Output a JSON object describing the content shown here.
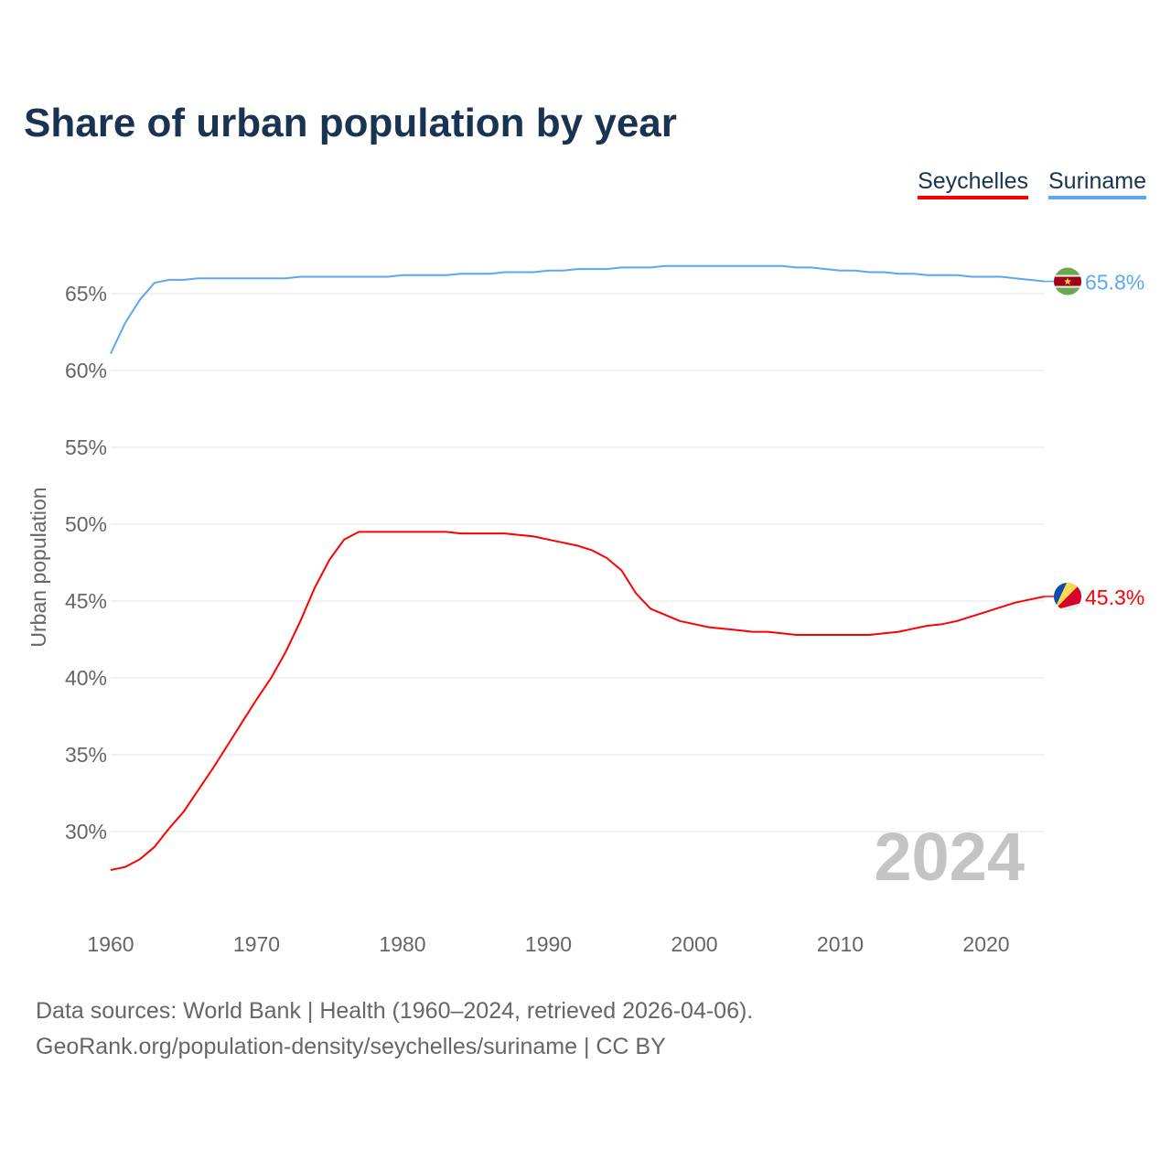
{
  "chart_data": {
    "type": "line",
    "title": "Share of urban population by year",
    "xlabel": "",
    "ylabel": "Urban population",
    "xlim": [
      1960,
      2024
    ],
    "ylim": [
      25,
      68.5
    ],
    "grid": true,
    "legend_placement": "top-right",
    "x_ticks": [
      "1960",
      "1970",
      "1980",
      "1990",
      "2000",
      "2010",
      "2020"
    ],
    "y_ticks": [
      30,
      35,
      40,
      45,
      50,
      55,
      60,
      65
    ],
    "y_tick_labels": [
      "30%",
      "35%",
      "40%",
      "45%",
      "50%",
      "55%",
      "60%",
      "65%"
    ],
    "year_watermark": "2024",
    "x": [
      1960,
      1961,
      1962,
      1963,
      1964,
      1965,
      1966,
      1967,
      1968,
      1969,
      1970,
      1971,
      1972,
      1973,
      1974,
      1975,
      1976,
      1977,
      1978,
      1979,
      1980,
      1981,
      1982,
      1983,
      1984,
      1985,
      1986,
      1987,
      1988,
      1989,
      1990,
      1991,
      1992,
      1993,
      1994,
      1995,
      1996,
      1997,
      1998,
      1999,
      2000,
      2001,
      2002,
      2003,
      2004,
      2005,
      2006,
      2007,
      2008,
      2009,
      2010,
      2011,
      2012,
      2013,
      2014,
      2015,
      2016,
      2017,
      2018,
      2019,
      2020,
      2021,
      2022,
      2023,
      2024
    ],
    "series": [
      {
        "name": "Seychelles",
        "color": "#ff0000",
        "end_label": "45.3%",
        "flag": "seychelles-flag",
        "values": [
          27.5,
          27.7,
          28.2,
          29.0,
          30.2,
          31.3,
          32.7,
          34.1,
          35.6,
          37.1,
          38.6,
          40.0,
          41.7,
          43.7,
          45.9,
          47.7,
          49.0,
          49.5,
          49.5,
          49.5,
          49.5,
          49.5,
          49.5,
          49.5,
          49.4,
          49.4,
          49.4,
          49.4,
          49.3,
          49.2,
          49.0,
          48.8,
          48.6,
          48.3,
          47.8,
          47.0,
          45.5,
          44.5,
          44.1,
          43.7,
          43.5,
          43.3,
          43.2,
          43.1,
          43.0,
          43.0,
          42.9,
          42.8,
          42.8,
          42.8,
          42.8,
          42.8,
          42.8,
          42.9,
          43.0,
          43.2,
          43.4,
          43.5,
          43.7,
          44.0,
          44.3,
          44.6,
          44.9,
          45.1,
          45.3
        ]
      },
      {
        "name": "Suriname",
        "color": "#5ba8f0",
        "end_label": "65.8%",
        "flag": "suriname-flag",
        "values": [
          61.1,
          63.1,
          64.6,
          65.7,
          65.9,
          65.9,
          66.0,
          66.0,
          66.0,
          66.0,
          66.0,
          66.0,
          66.0,
          66.1,
          66.1,
          66.1,
          66.1,
          66.1,
          66.1,
          66.1,
          66.2,
          66.2,
          66.2,
          66.2,
          66.3,
          66.3,
          66.3,
          66.4,
          66.4,
          66.4,
          66.5,
          66.5,
          66.6,
          66.6,
          66.6,
          66.7,
          66.7,
          66.7,
          66.8,
          66.8,
          66.8,
          66.8,
          66.8,
          66.8,
          66.8,
          66.8,
          66.8,
          66.7,
          66.7,
          66.6,
          66.5,
          66.5,
          66.4,
          66.4,
          66.3,
          66.3,
          66.2,
          66.2,
          66.2,
          66.1,
          66.1,
          66.1,
          66.0,
          65.9,
          65.8
        ]
      }
    ]
  },
  "footer": {
    "line1": "Data sources: World Bank | Health (1960–2024, retrieved 2026-04-06).",
    "line2": "GeoRank.org/population-density/seychelles/suriname | CC BY"
  }
}
